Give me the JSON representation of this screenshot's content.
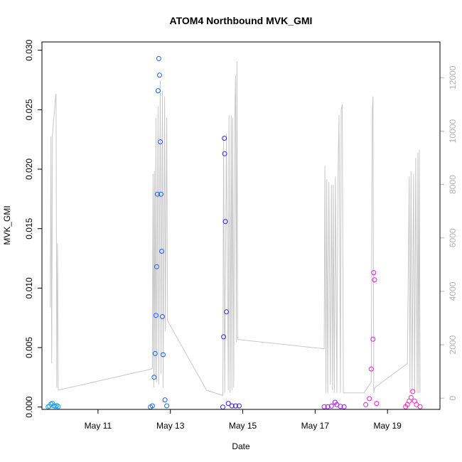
{
  "chart_data": {
    "type": "scatter",
    "title": "ATOM4 Northbound MVK_GMI",
    "xlabel": "Date",
    "ylabel": "MVK_GMI",
    "xlim": [
      9.45,
      20.45
    ],
    "ylim": [
      -0.0002,
      0.0307
    ],
    "x_ticks": [
      {
        "value": 11,
        "label": "May 11"
      },
      {
        "value": 13,
        "label": "May 13"
      },
      {
        "value": 15,
        "label": "May 15"
      },
      {
        "value": 17,
        "label": "May 17"
      },
      {
        "value": 19,
        "label": "May 19"
      }
    ],
    "y_ticks": [
      {
        "value": 0.0,
        "label": "0.000"
      },
      {
        "value": 0.005,
        "label": "0.005"
      },
      {
        "value": 0.01,
        "label": "0.010"
      },
      {
        "value": 0.015,
        "label": "0.015"
      },
      {
        "value": 0.02,
        "label": "0.020"
      },
      {
        "value": 0.025,
        "label": "0.025"
      },
      {
        "value": 0.03,
        "label": "0.030"
      }
    ],
    "y2lim": [
      -420,
      13340
    ],
    "y2_ticks": [
      {
        "value": 0,
        "label": "0"
      },
      {
        "value": 2000,
        "label": "2000"
      },
      {
        "value": 4000,
        "label": "4000"
      },
      {
        "value": 6000,
        "label": "6000"
      },
      {
        "value": 8000,
        "label": "8000"
      },
      {
        "value": 10000,
        "label": "10000"
      },
      {
        "value": 12000,
        "label": "12000"
      }
    ],
    "altitude_color": "#c8c8c8",
    "altitude": [
      [
        9.68,
        3400
      ],
      [
        9.7,
        9800
      ],
      [
        9.72,
        1300
      ],
      [
        9.74,
        9800
      ],
      [
        9.76,
        10200
      ],
      [
        9.8,
        10800
      ],
      [
        9.82,
        11200
      ],
      [
        9.84,
        11400
      ],
      [
        9.86,
        400
      ],
      [
        9.88,
        5800
      ],
      [
        9.9,
        300
      ],
      [
        12.5,
        1100
      ],
      [
        12.52,
        8400
      ],
      [
        12.54,
        400
      ],
      [
        12.56,
        8500
      ],
      [
        12.58,
        800
      ],
      [
        12.6,
        10500
      ],
      [
        12.62,
        600
      ],
      [
        12.66,
        10900
      ],
      [
        12.68,
        500
      ],
      [
        12.72,
        11900
      ],
      [
        12.74,
        900
      ],
      [
        12.78,
        11500
      ],
      [
        12.8,
        400
      ],
      [
        12.84,
        11300
      ],
      [
        12.86,
        2500
      ],
      [
        12.9,
        10500
      ],
      [
        12.92,
        2900
      ],
      [
        14.0,
        300
      ],
      [
        14.45,
        100
      ],
      [
        14.47,
        9800
      ],
      [
        14.5,
        200
      ],
      [
        14.55,
        9900
      ],
      [
        14.6,
        300
      ],
      [
        14.62,
        10600
      ],
      [
        14.65,
        200
      ],
      [
        14.68,
        10600
      ],
      [
        14.7,
        300
      ],
      [
        14.72,
        10500
      ],
      [
        14.75,
        400
      ],
      [
        14.78,
        10500
      ],
      [
        14.8,
        12100
      ],
      [
        14.82,
        2100
      ],
      [
        14.84,
        12600
      ],
      [
        14.86,
        2200
      ],
      [
        17.25,
        1850
      ],
      [
        17.27,
        8700
      ],
      [
        17.3,
        200
      ],
      [
        17.32,
        8200
      ],
      [
        17.35,
        200
      ],
      [
        17.38,
        8100
      ],
      [
        17.42,
        500
      ],
      [
        17.45,
        8000
      ],
      [
        17.48,
        300
      ],
      [
        17.5,
        8000
      ],
      [
        17.53,
        200
      ],
      [
        17.56,
        8300
      ],
      [
        17.6,
        200
      ],
      [
        17.63,
        8000
      ],
      [
        17.66,
        10600
      ],
      [
        17.7,
        200
      ],
      [
        17.72,
        10800
      ],
      [
        17.75,
        11000
      ],
      [
        17.78,
        200
      ],
      [
        18.35,
        200
      ],
      [
        18.55,
        600
      ],
      [
        18.58,
        10800
      ],
      [
        18.6,
        11300
      ],
      [
        18.62,
        200
      ],
      [
        18.65,
        400
      ],
      [
        19.55,
        1300
      ],
      [
        19.6,
        8300
      ],
      [
        19.62,
        200
      ],
      [
        19.65,
        8500
      ],
      [
        19.68,
        200
      ],
      [
        19.72,
        8400
      ],
      [
        19.75,
        200
      ],
      [
        19.78,
        9000
      ],
      [
        19.82,
        200
      ],
      [
        19.84,
        9200
      ],
      [
        19.86,
        200
      ],
      [
        19.88,
        9300
      ],
      [
        19.9,
        200
      ]
    ],
    "series": [
      {
        "color": "#1a9ce8",
        "x": [
          9.62,
          9.66,
          9.7,
          9.74,
          9.78,
          9.82,
          9.86,
          9.9
        ],
        "y": [
          2e-05,
          8e-05,
          0.00025,
          0.0003,
          0.0001,
          5e-05,
          0.00012,
          4e-05
        ]
      },
      {
        "color": "#1f5bfc",
        "x": [
          12.45,
          12.5,
          12.55,
          12.58,
          12.6,
          12.62,
          12.64,
          12.66,
          12.68,
          12.7,
          12.72,
          12.74,
          12.76,
          12.78,
          12.8,
          12.85,
          12.9
        ],
        "y": [
          0.0,
          0.0001,
          0.0025,
          0.0045,
          0.0077,
          0.0118,
          0.0179,
          0.0266,
          0.0293,
          0.0279,
          0.0223,
          0.0179,
          0.0131,
          0.0076,
          0.0044,
          0.0006,
          0.0001
        ]
      },
      {
        "color": "#3a1ff0",
        "x": [
          14.45,
          14.47,
          14.49,
          14.5,
          14.52,
          14.55,
          14.6,
          14.7,
          14.8,
          14.9
        ],
        "y": [
          0.0,
          0.0059,
          0.0226,
          0.0213,
          0.0156,
          0.008,
          0.0003,
          0.0001,
          0.0001,
          0.0001
        ]
      },
      {
        "color": "#9b15e8",
        "x": [
          17.25,
          17.35,
          17.45,
          17.55,
          17.6,
          17.7,
          17.8
        ],
        "y": [
          2e-05,
          3e-05,
          8e-05,
          0.0004,
          0.0002,
          5e-05,
          2e-05
        ]
      },
      {
        "color": "#e81ae8",
        "x": [
          18.4,
          18.5,
          18.55,
          18.6,
          18.62,
          18.64,
          18.7
        ],
        "y": [
          0.0002,
          0.0007,
          0.0032,
          0.0057,
          0.0113,
          0.0107,
          0.0003
        ]
      },
      {
        "color": "#ff20b8",
        "x": [
          19.5,
          19.55,
          19.6,
          19.65,
          19.7,
          19.75,
          19.8,
          19.9
        ],
        "y": [
          2e-05,
          0.0002,
          0.0005,
          0.0008,
          0.0013,
          0.0005,
          0.0002,
          2e-05
        ]
      }
    ]
  }
}
